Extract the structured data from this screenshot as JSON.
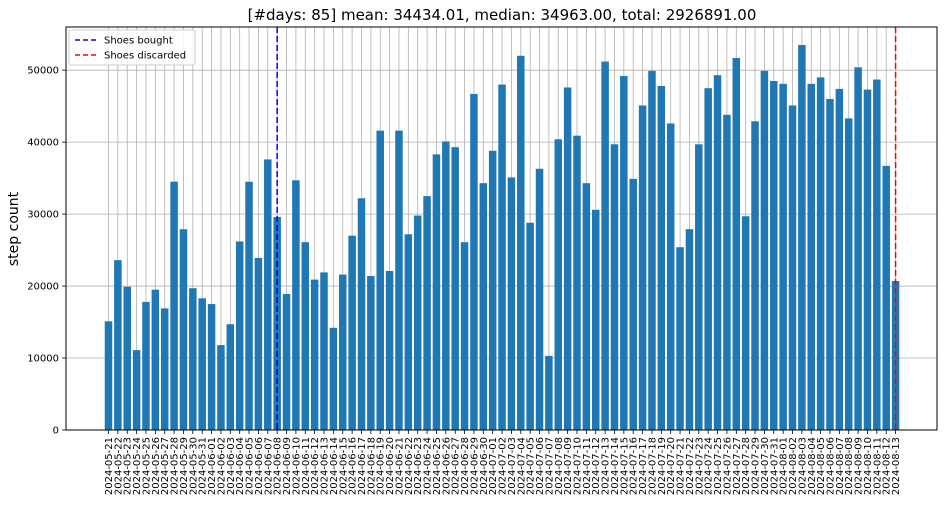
{
  "chart_data": {
    "type": "bar",
    "title": "[#days: 85] mean:  34434.01, median:  34963.00, total:  2926891.00",
    "xlabel": "",
    "ylabel": "step count",
    "ylim": [
      0,
      56000
    ],
    "yticks": [
      "0",
      "10000",
      "20000",
      "30000",
      "40000",
      "50000"
    ],
    "grid": true,
    "bar_color": "#1f77b4",
    "categories": [
      "2024-05-21",
      "2024-05-22",
      "2024-05-23",
      "2024-05-24",
      "2024-05-25",
      "2024-05-26",
      "2024-05-27",
      "2024-05-28",
      "2024-05-29",
      "2024-05-30",
      "2024-05-31",
      "2024-06-01",
      "2024-06-02",
      "2024-06-03",
      "2024-06-04",
      "2024-06-05",
      "2024-06-06",
      "2024-06-07",
      "2024-06-08",
      "2024-06-09",
      "2024-06-10",
      "2024-06-11",
      "2024-06-12",
      "2024-06-13",
      "2024-06-14",
      "2024-06-15",
      "2024-06-16",
      "2024-06-17",
      "2024-06-18",
      "2024-06-19",
      "2024-06-20",
      "2024-06-21",
      "2024-06-22",
      "2024-06-23",
      "2024-06-24",
      "2024-06-25",
      "2024-06-26",
      "2024-06-27",
      "2024-06-28",
      "2024-06-29",
      "2024-06-30",
      "2024-07-01",
      "2024-07-02",
      "2024-07-03",
      "2024-07-04",
      "2024-07-05",
      "2024-07-06",
      "2024-07-07",
      "2024-07-08",
      "2024-07-09",
      "2024-07-10",
      "2024-07-11",
      "2024-07-12",
      "2024-07-13",
      "2024-07-14",
      "2024-07-15",
      "2024-07-16",
      "2024-07-17",
      "2024-07-18",
      "2024-07-19",
      "2024-07-20",
      "2024-07-21",
      "2024-07-22",
      "2024-07-23",
      "2024-07-24",
      "2024-07-25",
      "2024-07-26",
      "2024-07-27",
      "2024-07-28",
      "2024-07-29",
      "2024-07-30",
      "2024-07-31",
      "2024-08-01",
      "2024-08-02",
      "2024-08-03",
      "2024-08-04",
      "2024-08-05",
      "2024-08-06",
      "2024-08-07",
      "2024-08-08",
      "2024-08-09",
      "2024-08-10",
      "2024-08-11",
      "2024-08-12",
      "2024-08-13"
    ],
    "values": [
      15100,
      23600,
      19900,
      11100,
      17800,
      19500,
      16900,
      34500,
      27900,
      19700,
      18300,
      17500,
      11800,
      14700,
      26200,
      34500,
      23900,
      37600,
      29600,
      18900,
      34700,
      26100,
      20900,
      21900,
      14200,
      21600,
      27000,
      32200,
      21400,
      41600,
      22100,
      41600,
      27200,
      29800,
      32500,
      38300,
      40100,
      39300,
      26100,
      46700,
      34300,
      38800,
      48000,
      35100,
      52000,
      28800,
      36300,
      10300,
      40400,
      47600,
      40900,
      34300,
      30600,
      51200,
      39700,
      49200,
      34900,
      45100,
      49900,
      47800,
      42600,
      25400,
      27900,
      39700,
      47500,
      49300,
      43800,
      51700,
      29700,
      42900,
      49900,
      48500,
      48100,
      45100,
      53500,
      48100,
      49000,
      46000,
      47400,
      43300,
      50400,
      47300,
      48700,
      36700,
      20700
    ],
    "vlines": [
      {
        "name": "Shoes bought",
        "at": "2024-06-08",
        "color": "#0000ff"
      },
      {
        "name": "Shoes discarded",
        "at": "2024-08-13",
        "color": "#ff0000"
      }
    ],
    "legend_position": "top-left"
  }
}
